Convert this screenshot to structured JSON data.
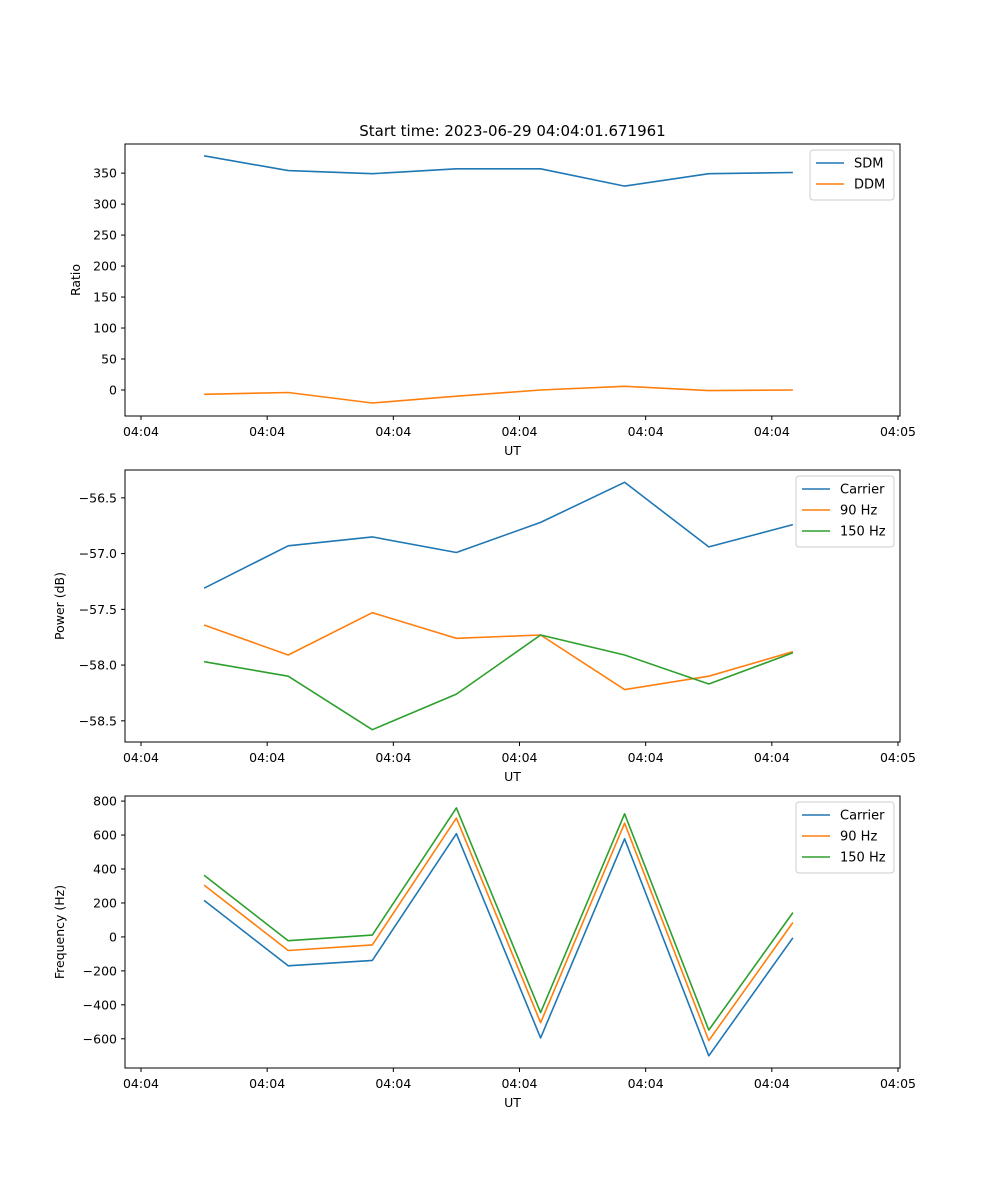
{
  "figure_title": "Start time: 2023-06-29 04:04:01.671961",
  "colors": {
    "blue": "#1f77b4",
    "orange": "#ff7f0e",
    "green": "#2ca02c"
  },
  "chart_data": [
    {
      "type": "line",
      "title": "Start time: 2023-06-29 04:04:01.671961",
      "xlabel": "UT",
      "ylabel": "Ratio",
      "x": [
        0.5,
        1.167,
        1.833,
        2.5,
        3.167,
        3.833,
        4.5,
        5.167
      ],
      "x_range": [
        0,
        6
      ],
      "x_ticks": [
        0,
        1,
        2,
        3,
        4,
        5,
        6
      ],
      "x_tick_labels": [
        "04:04",
        "04:04",
        "04:04",
        "04:04",
        "04:04",
        "04:04",
        "04:05"
      ],
      "ylim": [
        -42,
        397
      ],
      "y_ticks": [
        0,
        50,
        100,
        150,
        200,
        250,
        300,
        350
      ],
      "legend": "top-right",
      "grid": false,
      "series": [
        {
          "name": "SDM",
          "color": "#1f77b4",
          "values": [
            378,
            354,
            349,
            357,
            357,
            329,
            349,
            351
          ]
        },
        {
          "name": "DDM",
          "color": "#ff7f0e",
          "values": [
            -7,
            -4,
            -21,
            -10,
            0,
            6,
            -1,
            0
          ]
        }
      ]
    },
    {
      "type": "line",
      "xlabel": "UT",
      "ylabel": "Power (dB)",
      "x": [
        0.5,
        1.167,
        1.833,
        2.5,
        3.167,
        3.833,
        4.5,
        5.167
      ],
      "x_range": [
        0,
        6
      ],
      "x_ticks": [
        0,
        1,
        2,
        3,
        4,
        5,
        6
      ],
      "x_tick_labels": [
        "04:04",
        "04:04",
        "04:04",
        "04:04",
        "04:04",
        "04:04",
        "04:05"
      ],
      "ylim": [
        -58.69,
        -56.25
      ],
      "y_ticks": [
        -58.5,
        -58.0,
        -57.5,
        -57.0,
        -56.5
      ],
      "y_tick_labels": [
        "−58.5",
        "−58.0",
        "−57.5",
        "−57.0",
        "−56.5"
      ],
      "legend": "top-right",
      "grid": false,
      "series": [
        {
          "name": "Carrier",
          "color": "#1f77b4",
          "values": [
            -57.31,
            -56.93,
            -56.85,
            -56.99,
            -56.72,
            -56.36,
            -56.94,
            -56.74
          ]
        },
        {
          "name": "90 Hz",
          "color": "#ff7f0e",
          "values": [
            -57.64,
            -57.91,
            -57.53,
            -57.76,
            -57.73,
            -58.22,
            -58.1,
            -57.88
          ]
        },
        {
          "name": "150 Hz",
          "color": "#2ca02c",
          "values": [
            -57.97,
            -58.1,
            -58.58,
            -58.26,
            -57.73,
            -57.91,
            -58.17,
            -57.89
          ]
        }
      ]
    },
    {
      "type": "line",
      "xlabel": "UT",
      "ylabel": "Frequency (Hz)",
      "x": [
        0.5,
        1.167,
        1.833,
        2.5,
        3.167,
        3.833,
        4.5,
        5.167
      ],
      "x_range": [
        0,
        6
      ],
      "x_ticks": [
        0,
        1,
        2,
        3,
        4,
        5,
        6
      ],
      "x_tick_labels": [
        "04:04",
        "04:04",
        "04:04",
        "04:04",
        "04:04",
        "04:04",
        "04:05"
      ],
      "ylim": [
        -772,
        830
      ],
      "y_ticks": [
        -600,
        -400,
        -200,
        0,
        200,
        400,
        600,
        800
      ],
      "y_tick_labels": [
        "−600",
        "−400",
        "−200",
        "0",
        "200",
        "400",
        "600",
        "800"
      ],
      "legend": "top-right",
      "grid": false,
      "series": [
        {
          "name": "Carrier",
          "color": "#1f77b4",
          "values": [
            215,
            -170,
            -138,
            608,
            -595,
            578,
            -700,
            -5
          ]
        },
        {
          "name": "90 Hz",
          "color": "#ff7f0e",
          "values": [
            305,
            -80,
            -47,
            700,
            -505,
            670,
            -610,
            85
          ]
        },
        {
          "name": "150 Hz",
          "color": "#2ca02c",
          "values": [
            363,
            -22,
            11,
            760,
            -446,
            725,
            -548,
            143
          ]
        }
      ]
    }
  ]
}
